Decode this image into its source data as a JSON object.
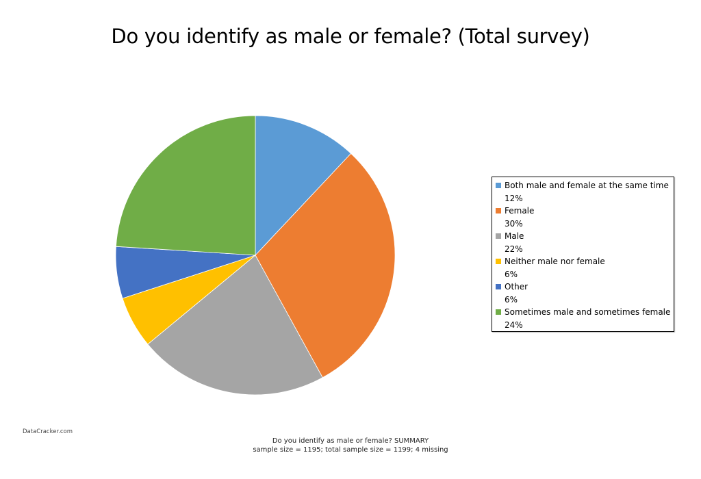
{
  "title": "Do you identify as male or female? (Total survey)",
  "chart_data": {
    "type": "pie",
    "title": "Do you identify as male or female? (Total survey)",
    "categories": [
      "Both male and female at the same time",
      "Female",
      "Male",
      "Neither male nor female",
      "Other",
      "Sometimes male and sometimes female"
    ],
    "values": [
      12,
      30,
      22,
      6,
      6,
      24
    ],
    "labels": [
      "12%",
      "30%",
      "22%",
      "6%",
      "6%",
      "24%"
    ],
    "colors": [
      "#5b9bd5",
      "#ed7d31",
      "#a5a5a5",
      "#ffc000",
      "#4472c4",
      "#70ad47"
    ],
    "legend_position": "right",
    "start_angle": 0,
    "direction": "clockwise"
  },
  "legend": [
    {
      "label": "Both male and female at the same time",
      "pct": "12%",
      "color": "#5b9bd5"
    },
    {
      "label": "Female",
      "pct": "30%",
      "color": "#ed7d31"
    },
    {
      "label": "Male",
      "pct": "22%",
      "color": "#a5a5a5"
    },
    {
      "label": "Neither male nor female",
      "pct": "6%",
      "color": "#ffc000"
    },
    {
      "label": "Other",
      "pct": "6%",
      "color": "#4472c4"
    },
    {
      "label": "Sometimes male and sometimes female",
      "pct": "24%",
      "color": "#70ad47"
    }
  ],
  "brand": "DataCracker.com",
  "footer": {
    "line1": "Do you identify as male or female? SUMMARY",
    "line2": "sample size = 1195; total sample size = 1199; 4 missing"
  }
}
